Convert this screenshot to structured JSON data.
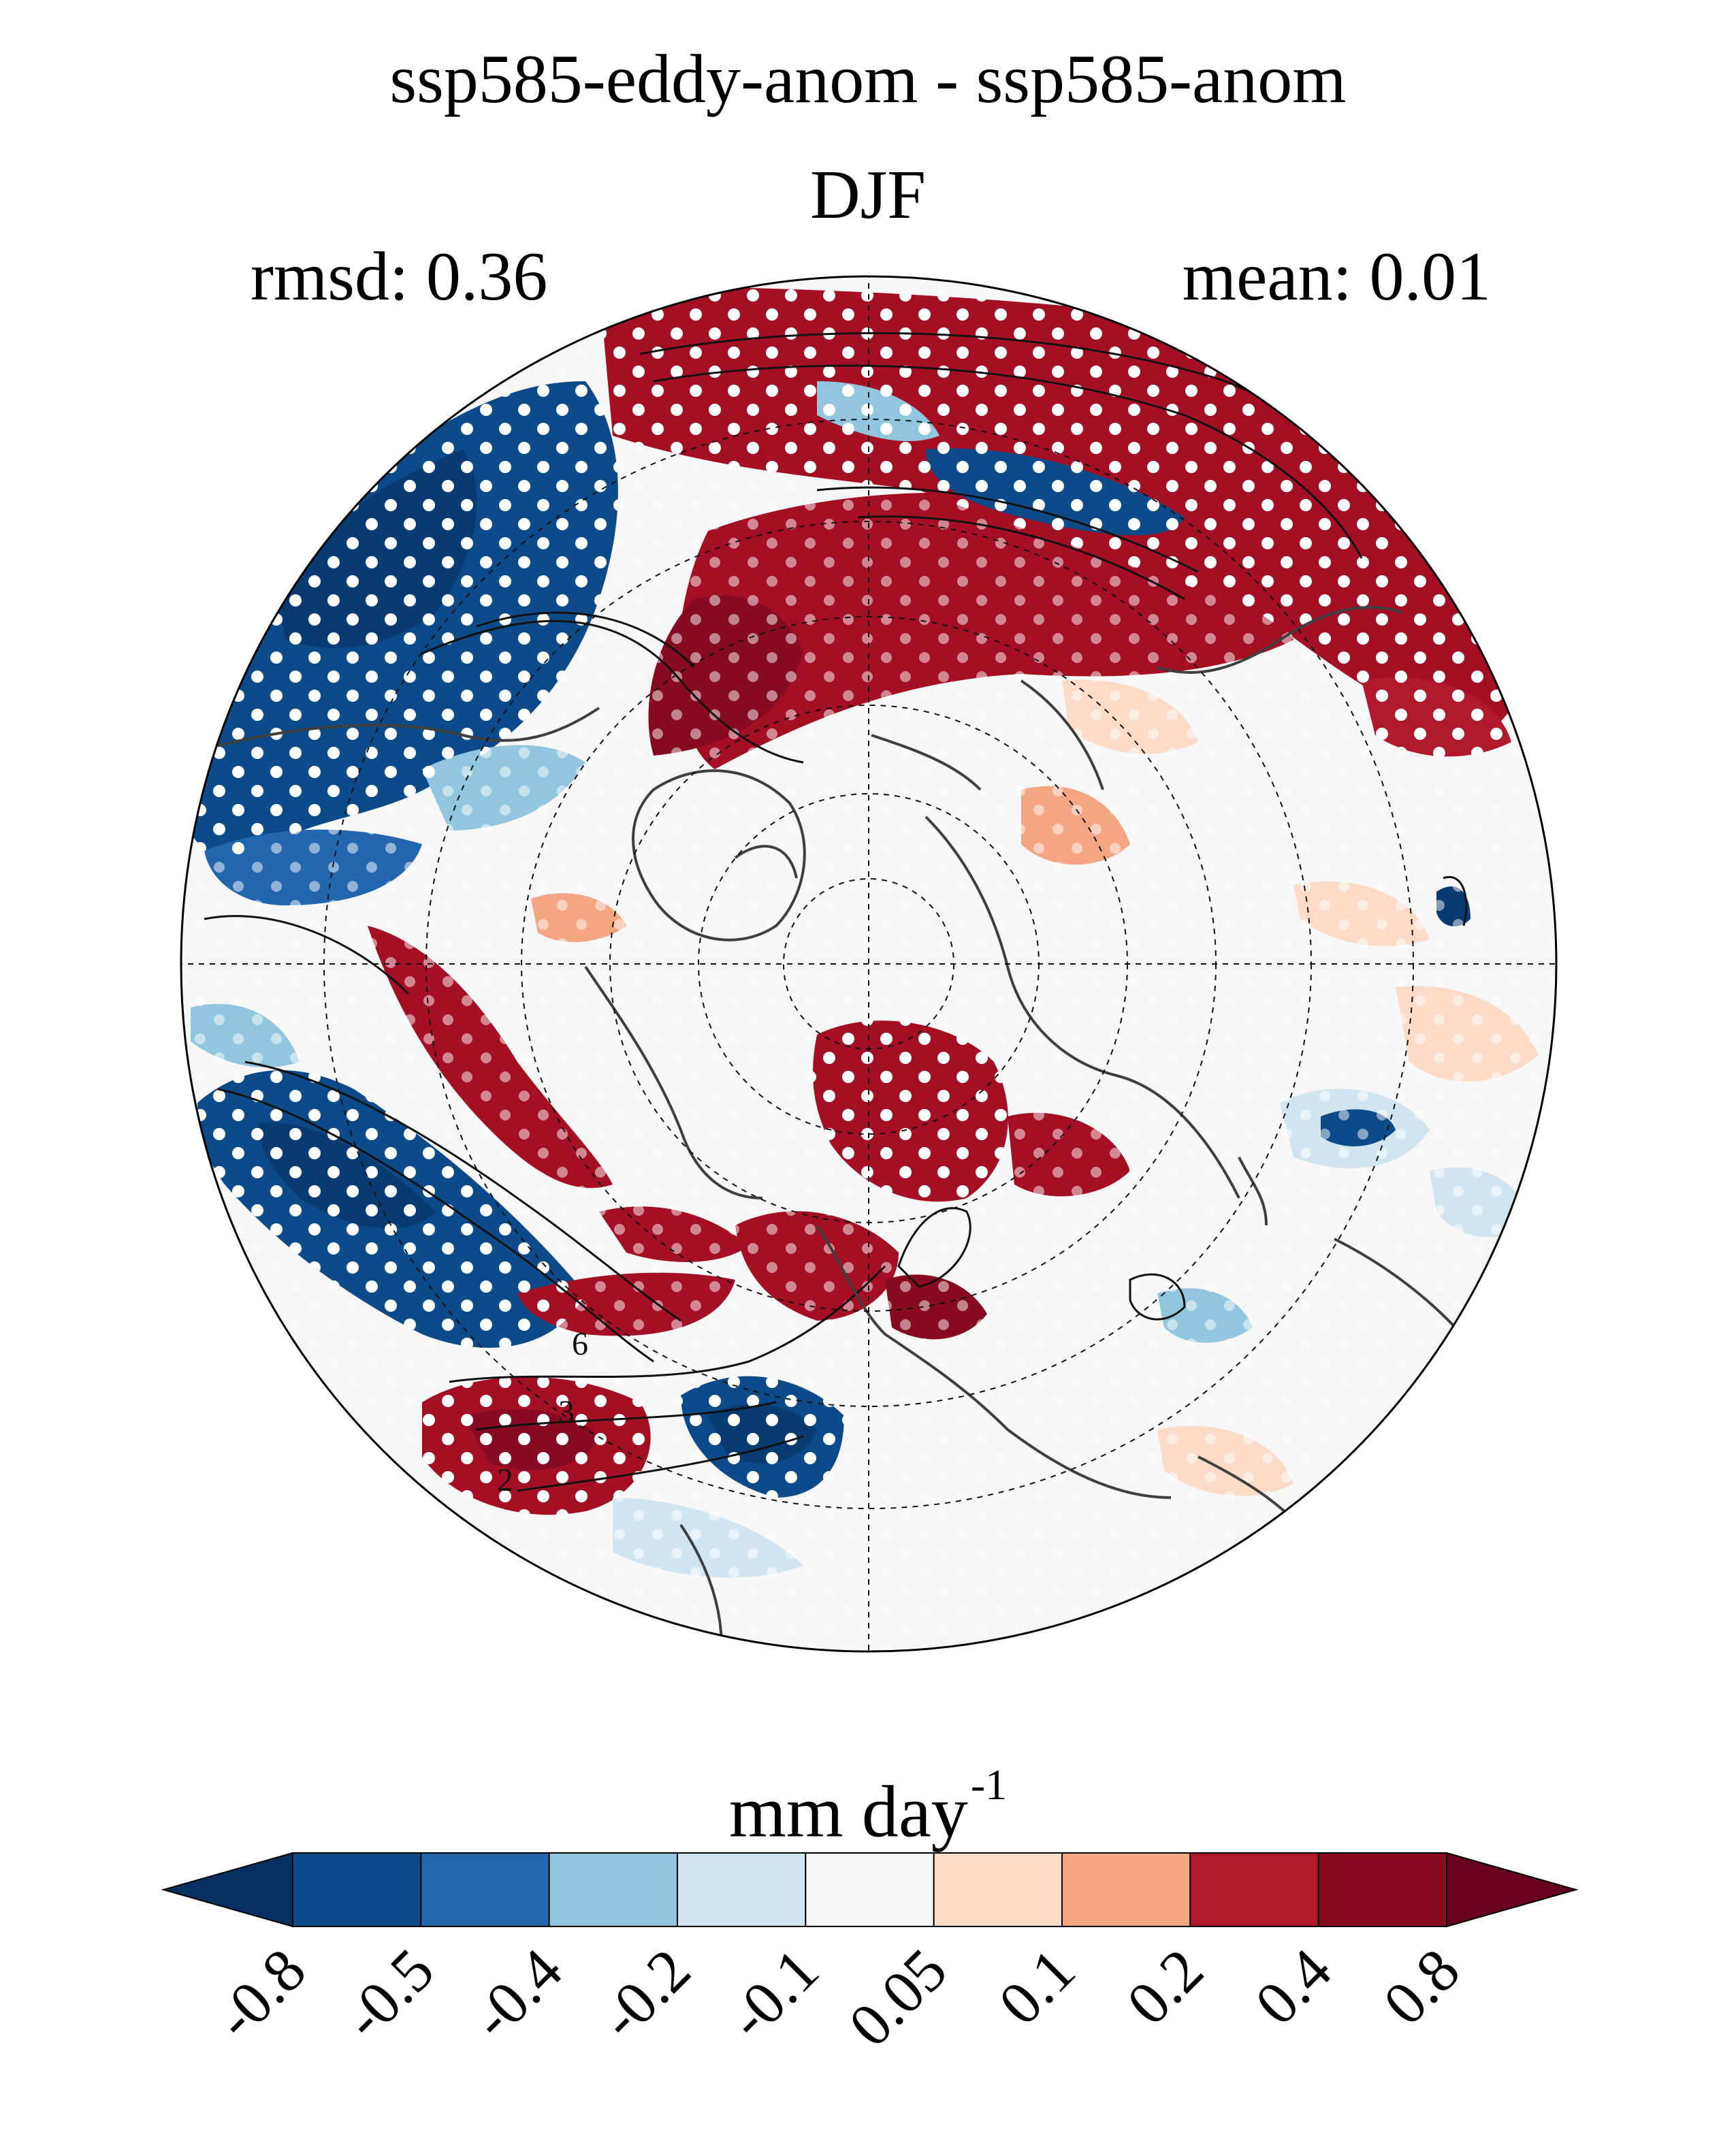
{
  "title": {
    "line1": "ssp585-eddy-anom - ssp585-anom",
    "line2": "DJF"
  },
  "stats": {
    "rmsd": "rmsd: 0.36",
    "mean": "mean: 0.01"
  },
  "map": {
    "projection": "north-polar-stereographic",
    "colors": {
      "strong_positive": "#a50f24",
      "strong_negative": "#073b72",
      "background_fill": "#f7f7f7",
      "coastline": "#3f3f3f",
      "stippling": "#ffffff"
    },
    "contour_labels": [
      "2",
      "3",
      "6"
    ]
  },
  "colorbar": {
    "units_main": "mm day",
    "units_exp": "-1",
    "tick_labels": [
      "-0.8",
      "-0.5",
      "-0.4",
      "-0.2",
      "-0.1",
      "0.05",
      "0.1",
      "0.2",
      "0.4",
      "0.8"
    ],
    "colors": [
      "#053061",
      "#0c4a8a",
      "#2266ad",
      "#92c5de",
      "#d1e5f0",
      "#f7f7f7",
      "#fddbc7",
      "#f4a582",
      "#b2182b",
      "#870a23",
      "#67001f"
    ]
  }
}
